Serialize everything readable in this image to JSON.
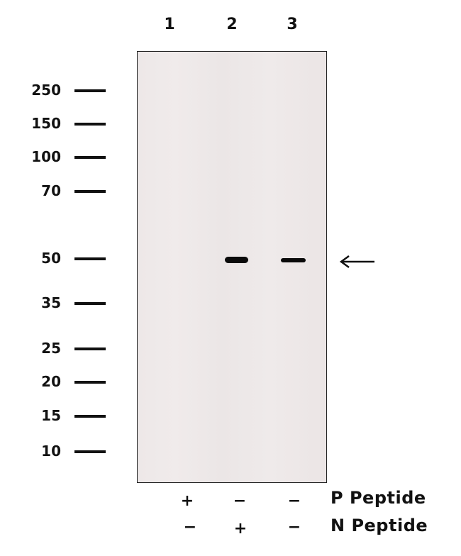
{
  "lanes": [
    "1",
    "2",
    "3"
  ],
  "markers": [
    "250",
    "150",
    "100",
    "70",
    "50",
    "35",
    "25",
    "20",
    "15",
    "10"
  ],
  "bands": [
    {
      "lane": "2",
      "marker": "50",
      "intensity": "strong"
    },
    {
      "lane": "3",
      "marker": "50",
      "intensity": "moderate"
    }
  ],
  "arrow": "left-arrow",
  "treatments": [
    {
      "label": "P Peptide",
      "signs": [
        "+",
        "−",
        "−"
      ]
    },
    {
      "label": "N Peptide",
      "signs": [
        "−",
        "+",
        "−"
      ]
    }
  ]
}
